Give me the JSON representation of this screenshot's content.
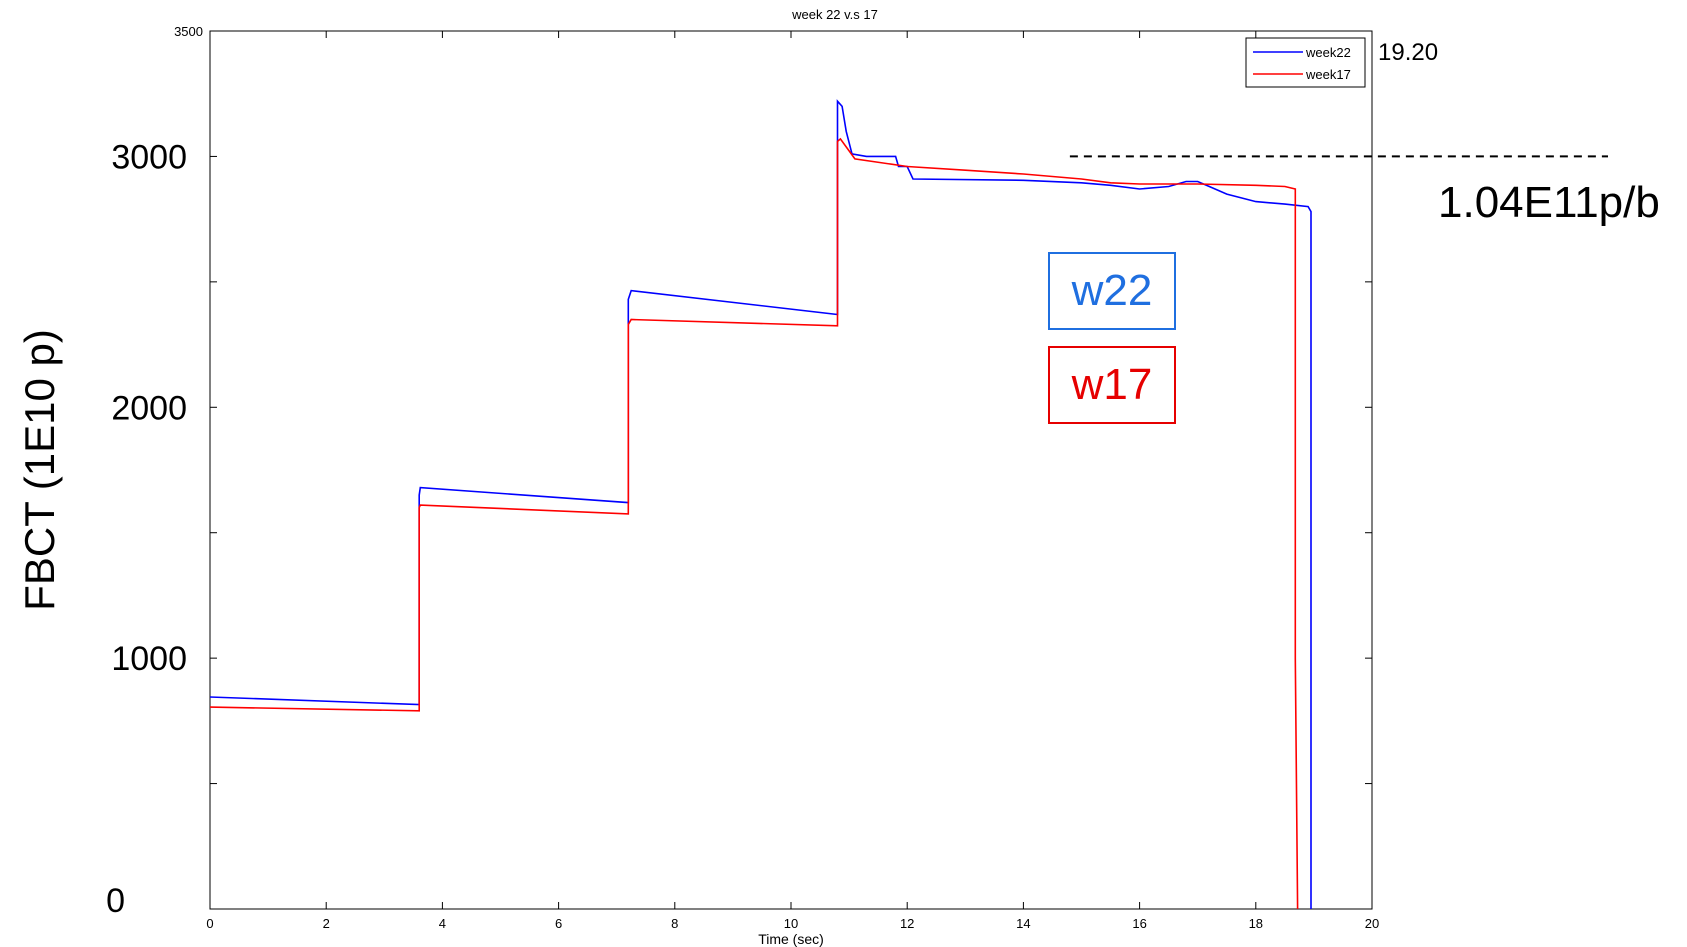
{
  "chart_data": {
    "type": "line",
    "title": "week 22 v.s 17",
    "xlabel": "Time (sec)",
    "ylabel": "FBCT (1E10 p)",
    "xlim": [
      0,
      20
    ],
    "ylim": [
      0,
      3500
    ],
    "x_ticks": [
      "0",
      "2",
      "4",
      "6",
      "8",
      "10",
      "12",
      "14",
      "16",
      "18",
      "20"
    ],
    "y_tick_top": "3500",
    "y_ticks_large": [
      "3000",
      "2000",
      "1000",
      "0"
    ],
    "grid": false,
    "legend_position": "top-right",
    "series": [
      {
        "name": "week22",
        "color": "#0000ff",
        "x": [
          0,
          3.6,
          3.6,
          3.62,
          7.2,
          7.2,
          7.25,
          10.8,
          10.8,
          10.88,
          10.95,
          11.05,
          11.3,
          11.8,
          11.85,
          12.0,
          12.1,
          14.0,
          15.0,
          15.5,
          16.0,
          16.5,
          16.8,
          17.0,
          17.2,
          17.5,
          18.0,
          18.5,
          18.9,
          18.95,
          18.95
        ],
        "y": [
          845,
          815,
          1650,
          1680,
          1620,
          2430,
          2465,
          2370,
          3220,
          3200,
          3100,
          3010,
          3000,
          3000,
          2960,
          2960,
          2910,
          2905,
          2895,
          2885,
          2870,
          2880,
          2900,
          2900,
          2880,
          2850,
          2820,
          2810,
          2800,
          2780,
          0
        ]
      },
      {
        "name": "week17",
        "color": "#ff0000",
        "x": [
          0,
          3.6,
          3.6,
          3.62,
          7.2,
          7.2,
          7.25,
          10.8,
          10.8,
          10.85,
          11.1,
          12.0,
          13.0,
          14.0,
          15.0,
          15.5,
          16.0,
          17.0,
          18.0,
          18.5,
          18.68,
          18.68,
          18.72
        ],
        "y": [
          805,
          790,
          1600,
          1610,
          1575,
          2330,
          2350,
          2325,
          3060,
          3070,
          2990,
          2960,
          2945,
          2930,
          2910,
          2895,
          2890,
          2890,
          2885,
          2880,
          2870,
          1000,
          0
        ]
      }
    ],
    "reference_line": {
      "y": 3000,
      "x_start": 14.8,
      "style": "dashed",
      "label": "1.04E11p/b"
    },
    "annotations": [
      {
        "text": "19.20"
      },
      {
        "text": "w22",
        "color": "#1f6fe0"
      },
      {
        "text": "w17",
        "color": "#e60000"
      }
    ]
  }
}
